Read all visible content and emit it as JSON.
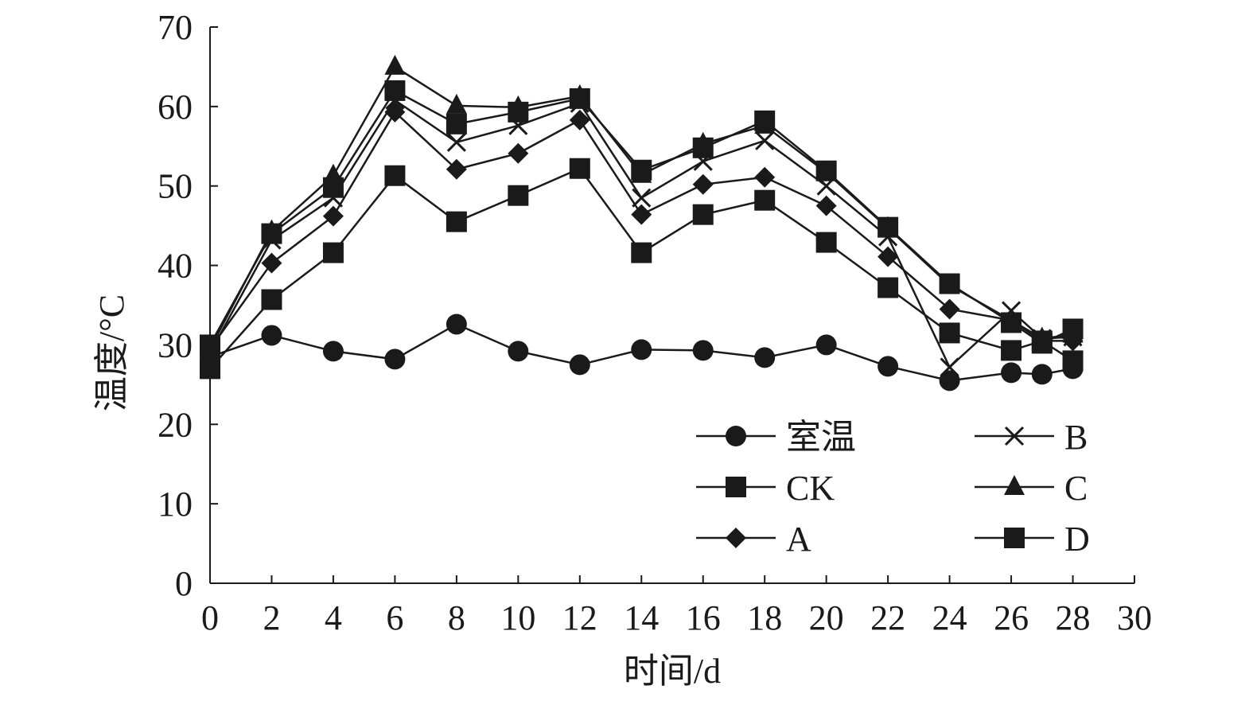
{
  "chart_data": {
    "type": "line",
    "xlabel": "时间/d",
    "ylabel": "温度/°C",
    "xlim": [
      0,
      30
    ],
    "ylim": [
      0,
      70
    ],
    "xticks": [
      0,
      2,
      4,
      6,
      8,
      10,
      12,
      14,
      16,
      18,
      20,
      22,
      24,
      26,
      28,
      30
    ],
    "yticks": [
      0,
      10,
      20,
      30,
      40,
      50,
      60,
      70
    ],
    "grid": false,
    "legend_position": "bottom-right",
    "series": [
      {
        "name": "室温",
        "marker": "circle",
        "x": [
          0,
          2,
          4,
          6,
          8,
          10,
          12,
          14,
          16,
          18,
          20,
          22,
          24,
          26,
          27,
          28
        ],
        "y": [
          28.5,
          31.2,
          29.2,
          28.2,
          32.6,
          29.2,
          27.5,
          29.4,
          29.3,
          28.4,
          30.0,
          27.3,
          25.5,
          26.5,
          26.3,
          27.0
        ]
      },
      {
        "name": "CK",
        "marker": "square",
        "x": [
          0,
          2,
          4,
          6,
          8,
          10,
          12,
          14,
          16,
          18,
          20,
          22,
          24,
          26,
          27,
          28
        ],
        "y": [
          27.0,
          35.7,
          41.6,
          51.3,
          45.5,
          48.8,
          52.2,
          41.6,
          46.4,
          48.2,
          42.9,
          37.2,
          31.5,
          29.3,
          30.5,
          28.0
        ]
      },
      {
        "name": "A",
        "marker": "diamond",
        "x": [
          0,
          2,
          4,
          6,
          8,
          10,
          12,
          14,
          16,
          18,
          20,
          22,
          24,
          26,
          27,
          28
        ],
        "y": [
          29.5,
          40.3,
          46.2,
          59.3,
          52.1,
          54.1,
          58.3,
          46.4,
          50.2,
          51.1,
          47.5,
          41.1,
          34.5,
          33.1,
          30.5,
          30.5
        ]
      },
      {
        "name": "B",
        "marker": "x",
        "x": [
          0,
          2,
          4,
          6,
          8,
          10,
          12,
          14,
          16,
          18,
          20,
          22,
          24,
          26,
          27,
          28
        ],
        "y": [
          29.0,
          43.2,
          48.5,
          60.8,
          55.5,
          57.6,
          60.4,
          48.5,
          53.1,
          55.7,
          50.0,
          43.6,
          27.2,
          34.3,
          30.8,
          31.0
        ]
      },
      {
        "name": "C",
        "marker": "triangle",
        "x": [
          0,
          2,
          4,
          6,
          8,
          10,
          12,
          14,
          16,
          18,
          20,
          22,
          24,
          26,
          27,
          28
        ],
        "y": [
          29.5,
          44.3,
          51.3,
          65.0,
          60.1,
          59.9,
          61.3,
          51.4,
          55.3,
          57.6,
          51.7,
          44.7,
          37.5,
          33.1,
          30.8,
          31.3
        ]
      },
      {
        "name": "D",
        "marker": "square",
        "x": [
          0,
          2,
          4,
          6,
          8,
          10,
          12,
          14,
          16,
          18,
          20,
          22,
          24,
          26,
          27,
          28
        ],
        "y": [
          30.0,
          44.0,
          49.8,
          62.0,
          57.8,
          59.3,
          61.0,
          52.0,
          54.8,
          58.2,
          51.9,
          44.8,
          37.7,
          32.8,
          30.2,
          32.0
        ]
      }
    ]
  },
  "colors": {
    "ink": "#1a1a1a",
    "background": "#ffffff"
  }
}
